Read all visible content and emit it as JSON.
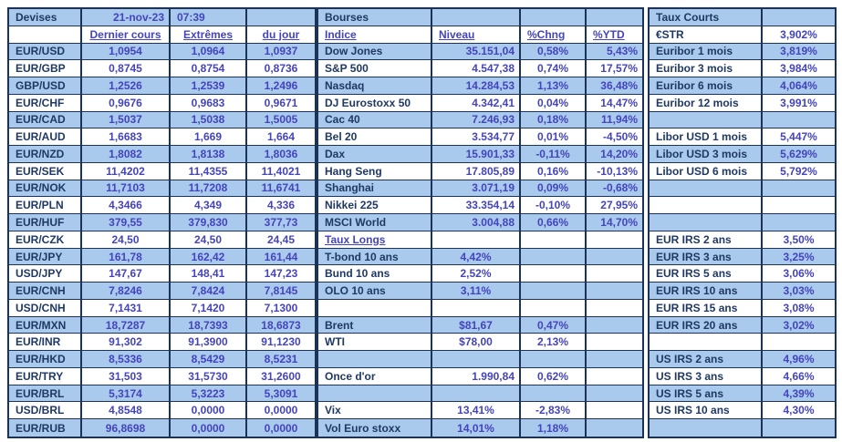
{
  "colors": {
    "row_shade": "#A9CAEC",
    "label_text": "#1F3864",
    "value_text": "#4444BE",
    "border": "#1B3358",
    "background": "#FFFFFF"
  },
  "devises": {
    "title": "Devises",
    "date": "21-nov-23",
    "time": "07:39",
    "columns": [
      "Dernier cours",
      "Extrêmes",
      "du jour"
    ],
    "rows": [
      {
        "pair": "EUR/USD",
        "last": "1,0954",
        "ext": "1,0964",
        "jour": "1,0937"
      },
      {
        "pair": "EUR/GBP",
        "last": "0,8745",
        "ext": "0,8754",
        "jour": "0,8736"
      },
      {
        "pair": "GBP/USD",
        "last": "1,2526",
        "ext": "1,2539",
        "jour": "1,2496"
      },
      {
        "pair": "EUR/CHF",
        "last": "0,9676",
        "ext": "0,9683",
        "jour": "0,9671"
      },
      {
        "pair": "EUR/CAD",
        "last": "1,5037",
        "ext": "1,5038",
        "jour": "1,5005"
      },
      {
        "pair": "EUR/AUD",
        "last": "1,6683",
        "ext": "1,669",
        "jour": "1,664"
      },
      {
        "pair": "EUR/NZD",
        "last": "1,8082",
        "ext": "1,8138",
        "jour": "1,8036"
      },
      {
        "pair": "EUR/SEK",
        "last": "11,4202",
        "ext": "11,4355",
        "jour": "11,4021"
      },
      {
        "pair": "EUR/NOK",
        "last": "11,7103",
        "ext": "11,7208",
        "jour": "11,6741"
      },
      {
        "pair": "EUR/PLN",
        "last": "4,3466",
        "ext": "4,349",
        "jour": "4,336"
      },
      {
        "pair": "EUR/HUF",
        "last": "379,55",
        "ext": "379,830",
        "jour": "377,73"
      },
      {
        "pair": "EUR/CZK",
        "last": "24,50",
        "ext": "24,50",
        "jour": "24,45"
      },
      {
        "pair": "EUR/JPY",
        "last": "161,78",
        "ext": "162,42",
        "jour": "161,44"
      },
      {
        "pair": "USD/JPY",
        "last": "147,67",
        "ext": "148,41",
        "jour": "147,23"
      },
      {
        "pair": "EUR/CNH",
        "last": "7,8246",
        "ext": "7,8424",
        "jour": "7,8145"
      },
      {
        "pair": "USD/CNH",
        "last": "7,1431",
        "ext": "7,1420",
        "jour": "7,1300"
      },
      {
        "pair": "EUR/MXN",
        "last": "18,7287",
        "ext": "18,7393",
        "jour": "18,6873"
      },
      {
        "pair": "EUR/INR",
        "last": "91,302",
        "ext": "91,3900",
        "jour": "91,1230"
      },
      {
        "pair": "EUR/HKD",
        "last": "8,5336",
        "ext": "8,5429",
        "jour": "8,5231"
      },
      {
        "pair": "EUR/TRY",
        "last": "31,503",
        "ext": "31,5730",
        "jour": "31,2600"
      },
      {
        "pair": "EUR/BRL",
        "last": "5,3174",
        "ext": "5,3223",
        "jour": "5,3091"
      },
      {
        "pair": "USD/BRL",
        "last": "4,8548",
        "ext": "0,0000",
        "jour": "0,0000"
      },
      {
        "pair": "EUR/RUB",
        "last": "96,8698",
        "ext": "0,0000",
        "jour": "0,0000"
      }
    ]
  },
  "bourses": {
    "title": "Bourses",
    "columns": [
      "Indice",
      "Niveau",
      "%Chng",
      "%YTD"
    ],
    "rows": [
      {
        "label": "Dow Jones",
        "niveau": "35.151,04",
        "chng": "0,58%",
        "ytd": "5,43%"
      },
      {
        "label": "S&P 500",
        "niveau": "4.547,38",
        "chng": "0,74%",
        "ytd": "17,57%"
      },
      {
        "label": "Nasdaq",
        "niveau": "14.284,53",
        "chng": "1,13%",
        "ytd": "36,48%"
      },
      {
        "label": "DJ Eurostoxx 50",
        "niveau": "4.342,41",
        "chng": "0,04%",
        "ytd": "14,47%"
      },
      {
        "label": "Cac 40",
        "niveau": "7.246,93",
        "chng": "0,18%",
        "ytd": "11,94%"
      },
      {
        "label": "Bel 20",
        "niveau": "3.534,77",
        "chng": "0,01%",
        "ytd": "-4,50%"
      },
      {
        "label": "Dax",
        "niveau": "15.901,33",
        "chng": "-0,11%",
        "ytd": "14,20%"
      },
      {
        "label": "Hang Seng",
        "niveau": "17.805,89",
        "chng": "0,16%",
        "ytd": "-10,13%"
      },
      {
        "label": "Shanghai",
        "niveau": "3.071,19",
        "chng": "0,09%",
        "ytd": "-0,68%"
      },
      {
        "label": "Nikkei 225",
        "niveau": "33.354,14",
        "chng": "-0,10%",
        "ytd": "27,95%"
      },
      {
        "label": "MSCI World",
        "niveau": "3.004,88",
        "chng": "0,66%",
        "ytd": "14,70%"
      },
      {
        "label": "Taux Longs",
        "niveau": "",
        "chng": "",
        "ytd": "",
        "underline": true
      },
      {
        "label": "T-bond 10 ans",
        "niveau": "4,42%",
        "chng": "",
        "ytd": ""
      },
      {
        "label": "Bund 10 ans",
        "niveau": "2,52%",
        "chng": "",
        "ytd": ""
      },
      {
        "label": "OLO 10 ans",
        "niveau": "3,11%",
        "chng": "",
        "ytd": ""
      },
      {
        "label": "",
        "niveau": "",
        "chng": "",
        "ytd": ""
      },
      {
        "label": "Brent",
        "niveau": "$81,67",
        "chng": "0,47%",
        "ytd": ""
      },
      {
        "label": "WTI",
        "niveau": "$78,00",
        "chng": "2,13%",
        "ytd": ""
      },
      {
        "label": "",
        "niveau": "",
        "chng": "",
        "ytd": ""
      },
      {
        "label": "Once d'or",
        "niveau": "1.990,84",
        "chng": "0,62%",
        "ytd": ""
      },
      {
        "label": "",
        "niveau": "",
        "chng": "",
        "ytd": ""
      },
      {
        "label": "Vix",
        "niveau": "13,41%",
        "chng": "-2,83%",
        "ytd": ""
      },
      {
        "label": "Vol Euro stoxx",
        "niveau": "14,01%",
        "chng": "1,18%",
        "ytd": ""
      }
    ]
  },
  "taux_courts": {
    "title": "Taux Courts",
    "rows": [
      {
        "label": "€STR",
        "value": "3,902%"
      },
      {
        "label": "Euribor 1 mois",
        "value": "3,819%"
      },
      {
        "label": "Euribor 3 mois",
        "value": "3,984%"
      },
      {
        "label": "Euribor 6 mois",
        "value": "4,064%"
      },
      {
        "label": "Euribor 12 mois",
        "value": "3,991%"
      },
      {
        "label": "",
        "value": ""
      },
      {
        "label": "Libor USD 1 mois",
        "value": "5,447%"
      },
      {
        "label": "Libor USD 3 mois",
        "value": "5,629%"
      },
      {
        "label": "Libor USD 6 mois",
        "value": "5,792%"
      },
      {
        "label": "",
        "value": ""
      },
      {
        "label": "",
        "value": ""
      },
      {
        "label": "",
        "value": ""
      },
      {
        "label": "EUR IRS 2 ans",
        "value": "3,50%"
      },
      {
        "label": "EUR IRS 3 ans",
        "value": "3,25%"
      },
      {
        "label": "EUR IRS 5 ans",
        "value": "3,06%"
      },
      {
        "label": "EUR IRS 10 ans",
        "value": "3,03%"
      },
      {
        "label": "EUR IRS 15 ans",
        "value": "3,08%"
      },
      {
        "label": "EUR IRS 20 ans",
        "value": "3,02%"
      },
      {
        "label": "",
        "value": ""
      },
      {
        "label": "US IRS 2 ans",
        "value": "4,96%"
      },
      {
        "label": "US IRS 3 ans",
        "value": "4,66%"
      },
      {
        "label": "US IRS 5 ans",
        "value": "4,39%"
      },
      {
        "label": "US IRS 10 ans",
        "value": "4,30%"
      },
      {
        "label": "",
        "value": ""
      }
    ]
  }
}
